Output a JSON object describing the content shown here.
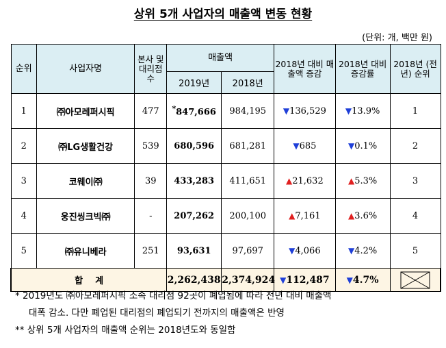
{
  "title": "상위 5개 사업자의 매출액 변동 현황",
  "unit": "(단위: 개, 백만 원)",
  "headers": {
    "rank": "순위",
    "company": "사업자명",
    "offices": "본사 및 대리점 수",
    "sales": "매출액",
    "sales_2019": "2019년",
    "sales_2018": "2018년",
    "sales_change": "2018년 대비 매출액 증감",
    "change_rate": "2018년 대비 증감률",
    "prev_rank": "2018년 (전년) 순위"
  },
  "rows": [
    {
      "rank": "1",
      "company": "㈜아모레퍼시픽",
      "offices": "477",
      "mark": "*",
      "sales_2019": "847,666",
      "sales_2018": "984,195",
      "dir": "down",
      "change": "136,529",
      "rate": "13.9%",
      "prev_rank": "1"
    },
    {
      "rank": "2",
      "company": "㈜LG생활건강",
      "offices": "539",
      "mark": "",
      "sales_2019": "680,596",
      "sales_2018": "681,281",
      "dir": "down",
      "change": "685",
      "rate": "0.1%",
      "prev_rank": "2"
    },
    {
      "rank": "3",
      "company": "코웨이㈜",
      "offices": "39",
      "mark": "",
      "sales_2019": "433,283",
      "sales_2018": "411,651",
      "dir": "up",
      "change": "21,632",
      "rate": "5.3%",
      "prev_rank": "3"
    },
    {
      "rank": "4",
      "company": "웅진씽크빅㈜",
      "offices": "-",
      "mark": "",
      "sales_2019": "207,262",
      "sales_2018": "200,100",
      "dir": "up",
      "change": "7,161",
      "rate": "3.6%",
      "prev_rank": "4"
    },
    {
      "rank": "5",
      "company": "㈜유니베라",
      "offices": "251",
      "mark": "",
      "sales_2019": "93,631",
      "sales_2018": "97,697",
      "dir": "down",
      "change": "4,066",
      "rate": "4.2%",
      "prev_rank": "5"
    }
  ],
  "total": {
    "label": "합    계",
    "sales_2019": "2,262,438",
    "sales_2018": "2,374,924",
    "dir": "down",
    "change": "112,487",
    "rate": "4.7%"
  },
  "notes": [
    "* 2019년도 ㈜아모레퍼시픽 소속 대리점 92곳이 폐업됨에 따라 전년 대비 매출액",
    "대폭 감소. 다만 폐업된 대리점의 폐업되기 전까지의 매출액은 반영",
    "** 상위 5개 사업자의 매출액 순위는 2018년도와 동일함"
  ],
  "colors": {
    "header_bg": "#dbeef3",
    "total_bg": "#fdf5e4",
    "down": "#1f3fd8",
    "up": "#e02020"
  }
}
